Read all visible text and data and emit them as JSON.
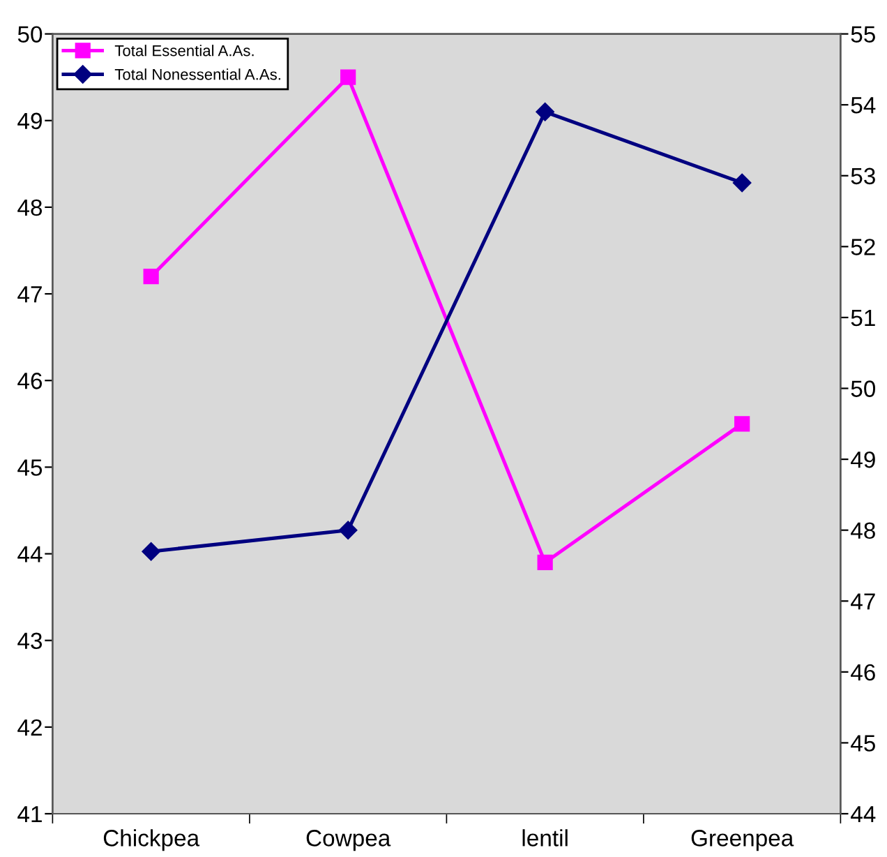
{
  "chart_data": {
    "type": "line",
    "categories": [
      "Chickpea",
      "Cowpea",
      "lentil",
      "Greenpea"
    ],
    "series": [
      {
        "name": "Total Essential A.As.",
        "color": "#ff00ff",
        "marker": "square",
        "values": [
          47.2,
          49.5,
          43.9,
          45.5
        ]
      },
      {
        "name": "Total Nonessential A.As.",
        "color": "#000080",
        "marker": "diamond",
        "axis": "y2",
        "values": [
          47.7,
          48.0,
          53.9,
          52.9
        ]
      }
    ],
    "ylim": [
      41,
      50
    ],
    "yticks": [
      41,
      42,
      43,
      44,
      45,
      46,
      47,
      48,
      49,
      50
    ],
    "y2lim": [
      44,
      55
    ],
    "y2ticks": [
      44,
      45,
      46,
      47,
      48,
      49,
      50,
      51,
      52,
      53,
      54,
      55
    ],
    "grid": false,
    "legend": "top left",
    "line_style": "solid"
  }
}
